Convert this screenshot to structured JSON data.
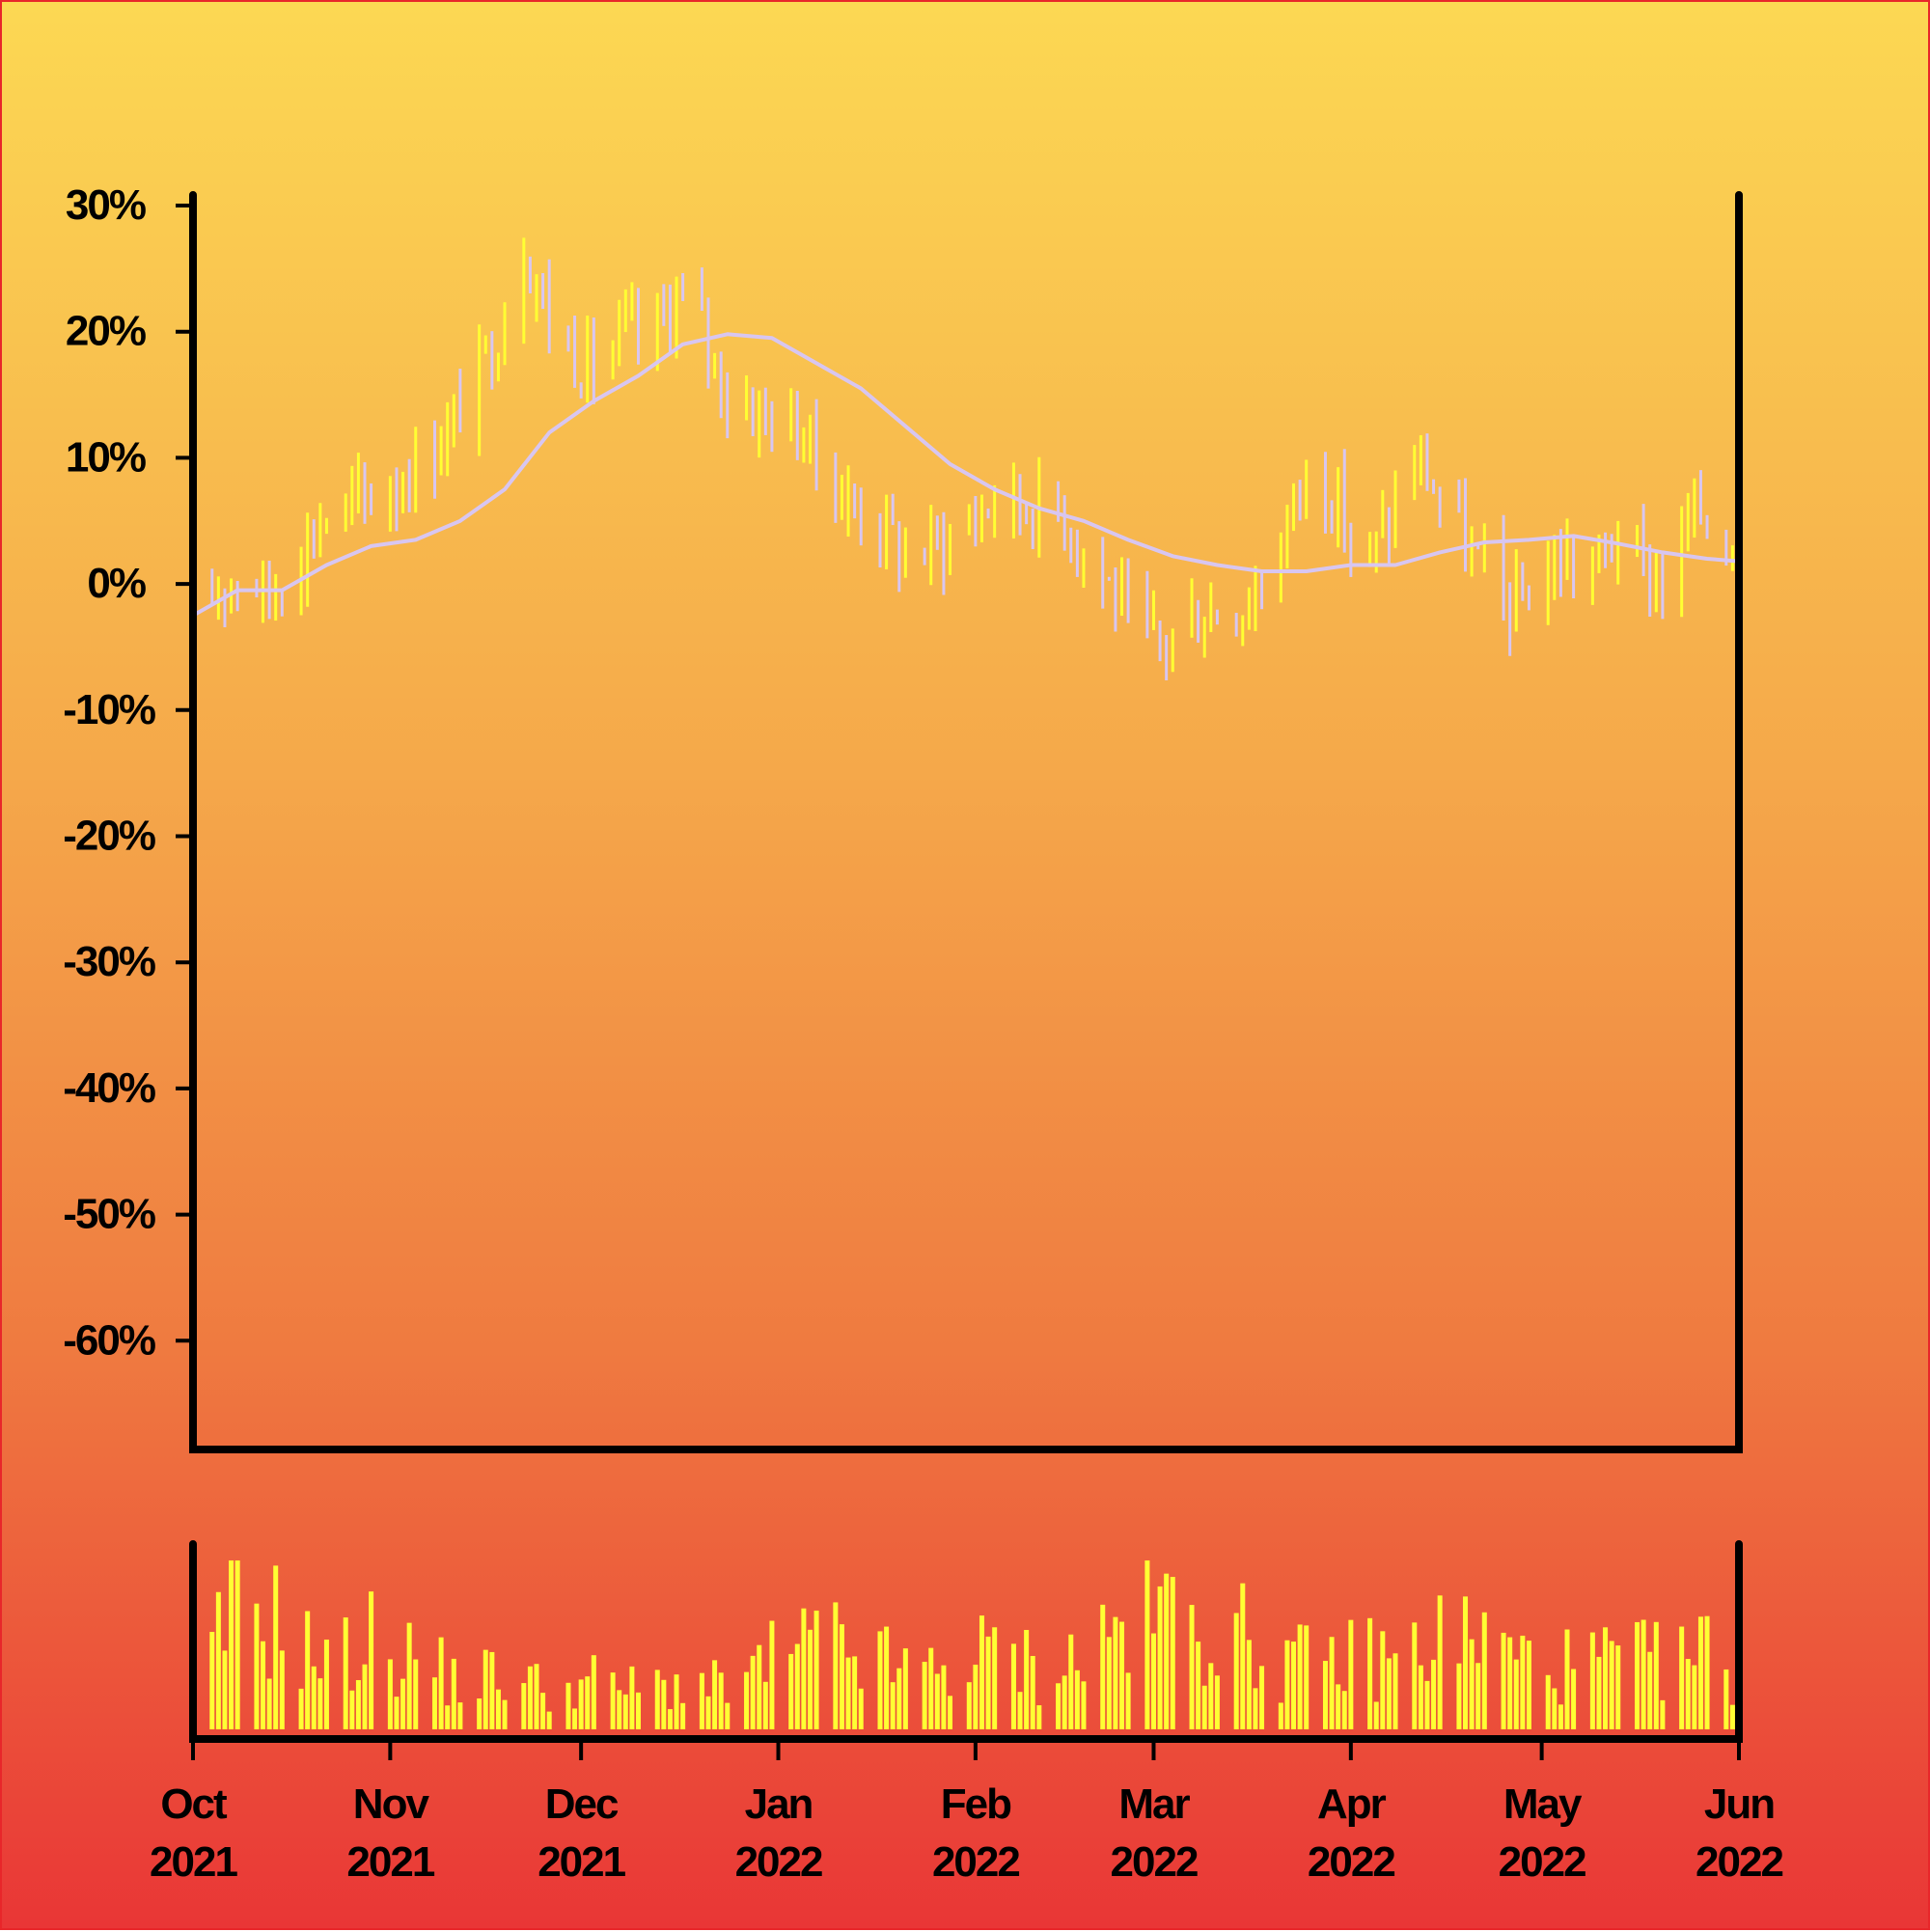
{
  "colors": {
    "background_top": "#fcd853",
    "background_bottom": "#e93636",
    "up": "#ffff33",
    "down": "#d8c6f0",
    "moving_average": "#d8c6f0",
    "volume": "#ffff33",
    "axis": "#000000"
  },
  "chart_data": {
    "type": "ohlc",
    "has_volume_panel": true,
    "ylim": [
      -70,
      30
    ],
    "y_ticks": [
      30,
      20,
      10,
      0,
      -10,
      -20,
      -30,
      -40,
      -50,
      -60
    ],
    "y_tick_labels": [
      "30%",
      "20%",
      "10%",
      "0%",
      "-10%",
      "-20%",
      "-30%",
      "-40%",
      "-50%",
      "-60%"
    ],
    "x_range": [
      "2021-10-01",
      "2022-06-01"
    ],
    "x_ticks": [
      {
        "date": "2021-10-01",
        "month": "Oct",
        "year": "2021"
      },
      {
        "date": "2021-11-01",
        "month": "Nov",
        "year": "2021"
      },
      {
        "date": "2021-12-01",
        "month": "Dec",
        "year": "2021"
      },
      {
        "date": "2022-01-01",
        "month": "Jan",
        "year": "2022"
      },
      {
        "date": "2022-02-01",
        "month": "Feb",
        "year": "2022"
      },
      {
        "date": "2022-03-01",
        "month": "Mar",
        "year": "2022"
      },
      {
        "date": "2022-04-01",
        "month": "Apr",
        "year": "2022"
      },
      {
        "date": "2022-05-01",
        "month": "May",
        "year": "2022"
      },
      {
        "date": "2022-06-01",
        "month": "Jun",
        "year": "2022"
      }
    ],
    "series": [
      {
        "kind": "price_path",
        "points": [
          [
            "2021-10-01",
            -3
          ],
          [
            "2021-10-05",
            0
          ],
          [
            "2021-10-09",
            1
          ],
          [
            "2021-10-13",
            -1
          ],
          [
            "2021-10-17",
            2
          ],
          [
            "2021-10-21",
            5
          ],
          [
            "2021-10-25",
            6
          ],
          [
            "2021-10-29",
            7
          ],
          [
            "2021-11-02",
            8
          ],
          [
            "2021-11-06",
            10
          ],
          [
            "2021-11-10",
            12
          ],
          [
            "2021-11-14",
            16
          ],
          [
            "2021-11-18",
            20
          ],
          [
            "2021-11-22",
            27
          ],
          [
            "2021-11-26",
            21
          ],
          [
            "2021-11-30",
            18
          ],
          [
            "2021-12-04",
            17
          ],
          [
            "2021-12-08",
            20
          ],
          [
            "2021-12-12",
            19
          ],
          [
            "2021-12-16",
            23
          ],
          [
            "2021-12-20",
            20
          ],
          [
            "2021-12-24",
            15
          ],
          [
            "2021-12-28",
            14
          ],
          [
            "2022-01-01",
            13
          ],
          [
            "2022-01-05",
            12
          ],
          [
            "2022-01-09",
            8
          ],
          [
            "2022-01-13",
            6
          ],
          [
            "2022-01-17",
            5
          ],
          [
            "2022-01-21",
            2
          ],
          [
            "2022-01-25",
            3
          ],
          [
            "2022-01-29",
            4
          ],
          [
            "2022-02-02",
            6
          ],
          [
            "2022-02-06",
            7
          ],
          [
            "2022-02-10",
            6
          ],
          [
            "2022-02-14",
            6
          ],
          [
            "2022-02-18",
            3
          ],
          [
            "2022-02-22",
            0
          ],
          [
            "2022-02-26",
            -4
          ],
          [
            "2022-03-02",
            -5
          ],
          [
            "2022-03-06",
            -3
          ],
          [
            "2022-03-10",
            -2
          ],
          [
            "2022-03-14",
            -2
          ],
          [
            "2022-03-18",
            0
          ],
          [
            "2022-03-22",
            5
          ],
          [
            "2022-03-26",
            10
          ],
          [
            "2022-03-30",
            6
          ],
          [
            "2022-04-03",
            1
          ],
          [
            "2022-04-07",
            5
          ],
          [
            "2022-04-11",
            10
          ],
          [
            "2022-04-15",
            7
          ],
          [
            "2022-04-19",
            3
          ],
          [
            "2022-04-23",
            0
          ],
          [
            "2022-04-27",
            -2
          ],
          [
            "2022-05-01",
            1
          ],
          [
            "2022-05-05",
            2
          ],
          [
            "2022-05-09",
            1
          ],
          [
            "2022-05-13",
            4
          ],
          [
            "2022-05-17",
            1
          ],
          [
            "2022-05-21",
            0
          ],
          [
            "2022-05-25",
            6
          ],
          [
            "2022-05-29",
            4
          ],
          [
            "2022-06-01",
            3
          ]
        ]
      },
      {
        "kind": "moving_average",
        "points": [
          [
            "2021-10-01",
            -2.5
          ],
          [
            "2021-10-08",
            -0.5
          ],
          [
            "2021-10-15",
            -0.5
          ],
          [
            "2021-10-22",
            1.5
          ],
          [
            "2021-10-29",
            3
          ],
          [
            "2021-11-05",
            3.5
          ],
          [
            "2021-11-12",
            5
          ],
          [
            "2021-11-19",
            7.5
          ],
          [
            "2021-11-26",
            12
          ],
          [
            "2021-12-03",
            14.5
          ],
          [
            "2021-12-10",
            16.5
          ],
          [
            "2021-12-17",
            19
          ],
          [
            "2021-12-24",
            19.8
          ],
          [
            "2021-12-31",
            19.5
          ],
          [
            "2022-01-07",
            17.5
          ],
          [
            "2022-01-14",
            15.5
          ],
          [
            "2022-01-21",
            12.5
          ],
          [
            "2022-01-28",
            9.5
          ],
          [
            "2022-02-04",
            7.5
          ],
          [
            "2022-02-11",
            6
          ],
          [
            "2022-02-18",
            5
          ],
          [
            "2022-02-25",
            3.5
          ],
          [
            "2022-03-04",
            2.2
          ],
          [
            "2022-03-11",
            1.5
          ],
          [
            "2022-03-18",
            1
          ],
          [
            "2022-03-25",
            1
          ],
          [
            "2022-04-01",
            1.5
          ],
          [
            "2022-04-08",
            1.5
          ],
          [
            "2022-04-15",
            2.5
          ],
          [
            "2022-04-22",
            3.3
          ],
          [
            "2022-04-29",
            3.5
          ],
          [
            "2022-05-06",
            3.8
          ],
          [
            "2022-05-13",
            3.2
          ],
          [
            "2022-05-20",
            2.5
          ],
          [
            "2022-05-27",
            2
          ],
          [
            "2022-06-01",
            1.8
          ]
        ]
      },
      {
        "kind": "volume",
        "points": [
          [
            "2021-10-01",
            0.15
          ],
          [
            "2021-10-08",
            0.85
          ],
          [
            "2021-10-15",
            0.65
          ],
          [
            "2021-10-22",
            0.4
          ],
          [
            "2021-10-29",
            0.55
          ],
          [
            "2021-11-05",
            0.45
          ],
          [
            "2021-11-12",
            0.3
          ],
          [
            "2021-11-19",
            0.35
          ],
          [
            "2021-11-26",
            0.25
          ],
          [
            "2021-12-03",
            0.3
          ],
          [
            "2021-12-10",
            0.25
          ],
          [
            "2021-12-17",
            0.3
          ],
          [
            "2021-12-24",
            0.25
          ],
          [
            "2022-01-01",
            0.45
          ],
          [
            "2022-01-08",
            0.55
          ],
          [
            "2022-01-15",
            0.45
          ],
          [
            "2022-01-22",
            0.35
          ],
          [
            "2022-01-29",
            0.4
          ],
          [
            "2022-02-05",
            0.5
          ],
          [
            "2022-02-12",
            0.35
          ],
          [
            "2022-02-19",
            0.5
          ],
          [
            "2022-02-26",
            0.7
          ],
          [
            "2022-03-05",
            0.75
          ],
          [
            "2022-03-12",
            0.65
          ],
          [
            "2022-03-19",
            0.45
          ],
          [
            "2022-03-26",
            0.4
          ],
          [
            "2022-04-02",
            0.45
          ],
          [
            "2022-04-09",
            0.45
          ],
          [
            "2022-04-16",
            0.6
          ],
          [
            "2022-04-23",
            0.55
          ],
          [
            "2022-04-30",
            0.4
          ],
          [
            "2022-05-07",
            0.4
          ],
          [
            "2022-05-14",
            0.45
          ],
          [
            "2022-05-21",
            0.4
          ],
          [
            "2022-05-28",
            0.5
          ],
          [
            "2022-06-01",
            0.35
          ]
        ]
      }
    ]
  }
}
